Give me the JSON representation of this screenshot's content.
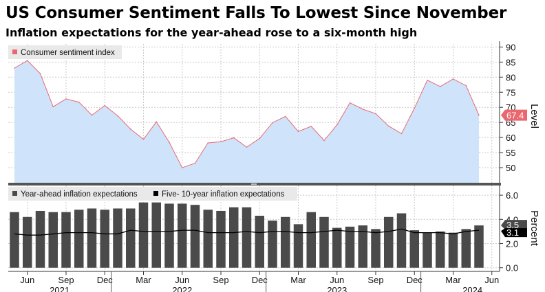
{
  "title": "US Consumer Sentiment Falls To Lowest Since November",
  "subtitle": "Inflation expectations for the year-ahead rose to a six-month high",
  "colors": {
    "sentiment_fill": "#cfe3fb",
    "sentiment_line": "#e86a74",
    "sentiment_badge": "#e9676d",
    "bars": "#4a4a4a",
    "bars_badge": "#4a4a4a",
    "longrun_line": "#000000",
    "longrun_badge": "#000000",
    "grid": "#c9c9c9"
  },
  "chart_data": [
    {
      "type": "area",
      "legend": [
        "Consumer sentiment index"
      ],
      "series": [
        {
          "name": "Consumer sentiment index",
          "values": [
            83.0,
            85.5,
            81.2,
            70.2,
            72.8,
            71.7,
            67.4,
            70.6,
            67.2,
            62.8,
            59.4,
            65.2,
            58.4,
            50.0,
            51.5,
            58.2,
            58.6,
            59.9,
            56.8,
            59.7,
            64.9,
            67.0,
            62.0,
            63.7,
            59.0,
            64.2,
            71.5,
            69.4,
            67.9,
            63.8,
            61.3,
            69.7,
            79.0,
            76.9,
            79.4,
            77.2,
            67.4
          ]
        }
      ],
      "ylabel": "Level",
      "ylim": [
        45,
        91
      ],
      "yticks": [
        "90",
        "85",
        "80",
        "75",
        "70",
        "65",
        "60",
        "55",
        "50"
      ],
      "last_value_label": "67.4",
      "grid": true,
      "legend_placement": "top-left"
    },
    {
      "type": "bar",
      "legend": [
        "Year-ahead inflation expectations",
        "Five- 10-year inflation expectations"
      ],
      "series": [
        {
          "name": "Year-ahead inflation expectations",
          "values": [
            4.6,
            4.2,
            4.7,
            4.6,
            4.6,
            4.8,
            4.9,
            4.8,
            4.9,
            4.9,
            5.4,
            5.4,
            5.3,
            5.3,
            5.2,
            4.8,
            4.7,
            5.0,
            5.0,
            4.3,
            3.9,
            4.2,
            3.6,
            4.6,
            4.2,
            3.3,
            3.4,
            3.5,
            3.2,
            4.2,
            4.5,
            3.1,
            2.9,
            3.0,
            2.9,
            3.2,
            3.5
          ],
          "last_value_label": "3.5"
        },
        {
          "name": "Five- 10-year inflation expectations",
          "values": [
            2.8,
            2.7,
            2.7,
            2.8,
            2.9,
            2.9,
            2.9,
            2.8,
            2.8,
            3.1,
            3.0,
            3.0,
            3.0,
            3.1,
            3.1,
            2.9,
            2.9,
            2.9,
            3.0,
            2.9,
            3.0,
            3.0,
            2.9,
            2.9,
            3.0,
            3.1,
            3.0,
            3.0,
            2.9,
            3.0,
            3.2,
            2.9,
            2.9,
            2.9,
            2.8,
            3.0,
            3.1
          ],
          "last_value_label": "3.1"
        }
      ],
      "ylabel": "Percent",
      "ylim": [
        -0.3,
        6.8
      ],
      "yticks": [
        "6.0",
        "4.0",
        "2.0",
        "0.0"
      ],
      "grid": true,
      "legend_placement": "top-left"
    }
  ],
  "x_axis": {
    "months": [
      "Jun",
      "Sep",
      "Dec",
      "Mar",
      "Jun",
      "Sep",
      "Dec",
      "Mar",
      "Jun",
      "Sep",
      "Dec",
      "Mar",
      "Jun"
    ],
    "years": [
      "2021",
      "2022",
      "2023",
      "2024"
    ]
  }
}
